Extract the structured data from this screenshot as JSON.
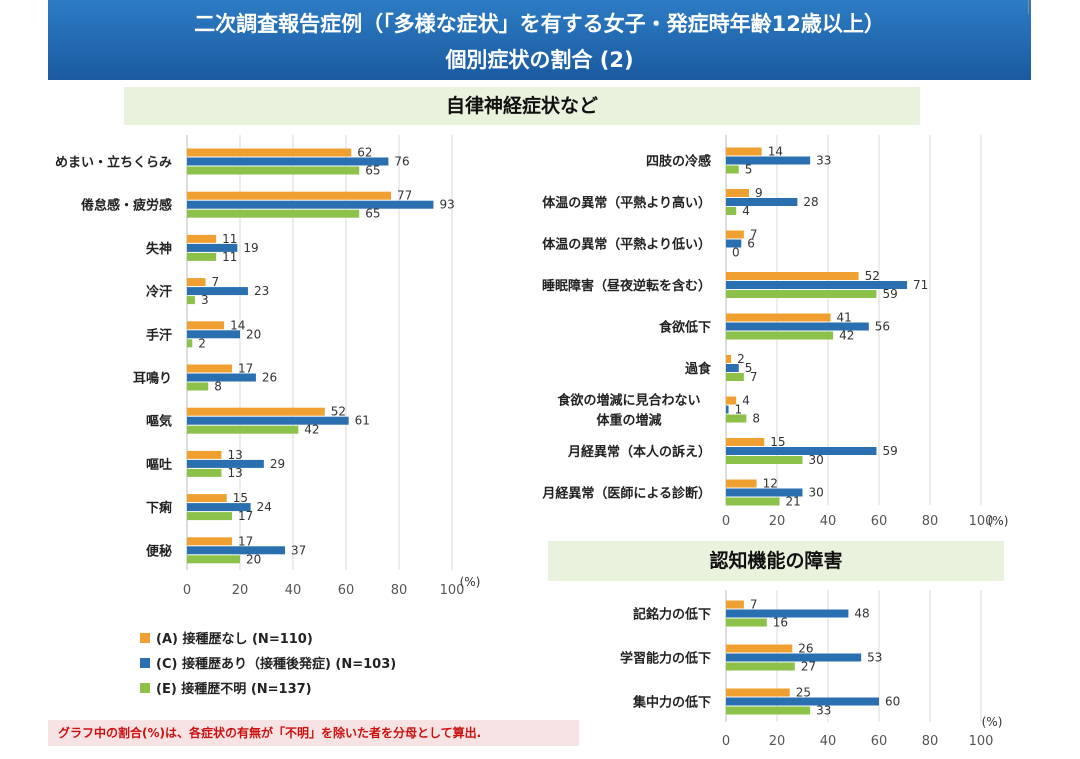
{
  "header": {
    "line1": "二次調査報告症例（「多様な症状」を有する女子・発症時年齢12歳以上）",
    "line2": "個別症状の割合 (2)"
  },
  "sections": {
    "autonomic": "自律神経症状など",
    "cognitive": "認知機能の障害"
  },
  "colors": {
    "A": "#f0a030",
    "C": "#2a6fb0",
    "E": "#8cc24a"
  },
  "legend": [
    {
      "key": "A",
      "label": "(A) 接種歴なし (N=110)"
    },
    {
      "key": "C",
      "label": "(C) 接種歴あり（接種後発症) (N=103)"
    },
    {
      "key": "E",
      "label": "(E) 接種歴不明 (N=137)"
    }
  ],
  "note": "グラフ中の割合(%)は、各症状の有無が「不明」を除いた者を分母として算出.",
  "chart_data": [
    {
      "type": "bar",
      "orientation": "horizontal",
      "categories": [
        "めまい・立ちくらみ",
        "倦怠感・疲労感",
        "失神",
        "冷汗",
        "手汗",
        "耳鳴り",
        "嘔気",
        "嘔吐",
        "下痢",
        "便秘"
      ],
      "series": [
        {
          "name": "(A) 接種歴なし (N=110)",
          "key": "A",
          "values": [
            62,
            77,
            11,
            7,
            14,
            17,
            52,
            13,
            15,
            17
          ]
        },
        {
          "name": "(C) 接種歴あり（接種後発症) (N=103)",
          "key": "C",
          "values": [
            76,
            93,
            19,
            23,
            20,
            26,
            61,
            29,
            24,
            37
          ]
        },
        {
          "name": "(E) 接種歴不明 (N=137)",
          "key": "E",
          "values": [
            65,
            65,
            11,
            3,
            2,
            8,
            42,
            13,
            17,
            20
          ]
        }
      ],
      "xticks": [
        "0",
        "20",
        "40",
        "60",
        "80",
        "100"
      ],
      "xlim": [
        0,
        100
      ],
      "unit": "(%)",
      "grid": true
    },
    {
      "type": "bar",
      "orientation": "horizontal",
      "categories": [
        "四肢の冷感",
        "体温の異常（平熱より高い）",
        "体温の異常（平熱より低い）",
        "睡眠障害（昼夜逆転を含む）",
        "食欲低下",
        "過食",
        "食欲の増減に見合わない\n体重の増減",
        "月経異常（本人の訴え）",
        "月経異常（医師による診断）"
      ],
      "series": [
        {
          "name": "(A) 接種歴なし (N=110)",
          "key": "A",
          "values": [
            14,
            9,
            7,
            52,
            41,
            2,
            4,
            15,
            12
          ]
        },
        {
          "name": "(C) 接種歴あり（接種後発症) (N=103)",
          "key": "C",
          "values": [
            33,
            28,
            6,
            71,
            56,
            5,
            1,
            59,
            30
          ]
        },
        {
          "name": "(E) 接種歴不明 (N=137)",
          "key": "E",
          "values": [
            5,
            4,
            0,
            59,
            42,
            7,
            8,
            30,
            21
          ]
        }
      ],
      "xticks": [
        "0",
        "20",
        "40",
        "60",
        "80",
        "100"
      ],
      "xlim": [
        0,
        100
      ],
      "unit": "(%)",
      "grid": true
    },
    {
      "type": "bar",
      "orientation": "horizontal",
      "categories": [
        "記銘力の低下",
        "学習能力の低下",
        "集中力の低下"
      ],
      "series": [
        {
          "name": "(A) 接種歴なし (N=110)",
          "key": "A",
          "values": [
            7,
            26,
            25
          ]
        },
        {
          "name": "(C) 接種歴あり（接種後発症) (N=103)",
          "key": "C",
          "values": [
            48,
            53,
            60
          ]
        },
        {
          "name": "(E) 接種歴不明 (N=137)",
          "key": "E",
          "values": [
            16,
            27,
            33
          ]
        }
      ],
      "xticks": [
        "0",
        "20",
        "40",
        "60",
        "80",
        "100"
      ],
      "xlim": [
        0,
        100
      ],
      "unit": "(%)",
      "grid": true
    }
  ]
}
